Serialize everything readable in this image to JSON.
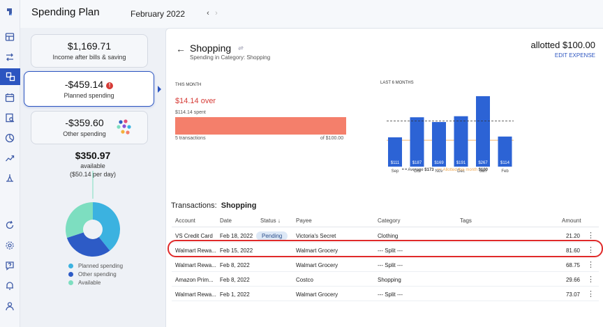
{
  "app": {
    "title": "Spending Plan",
    "month": "February 2022",
    "prev_icon": "chevron-left-icon",
    "next_icon": "chevron-right-icon"
  },
  "colors": {
    "accent": "#2c55c0",
    "over": "#f47f6b",
    "over_text": "#d63b36",
    "bar": "#2c63d5",
    "pie_planned": "#3bb2e0",
    "pie_other": "#2d5bc6",
    "pie_available": "#7ddec0"
  },
  "rail": [
    "logo-icon",
    "dashboard-icon",
    "transactions-icon",
    "spending-plan-icon",
    "calendar-icon",
    "reports-icon",
    "investments-icon",
    "trends-icon",
    "goals-icon",
    "refresh-icon",
    "settings-icon",
    "help-icon",
    "notifications-icon",
    "profile-icon"
  ],
  "left": {
    "income": {
      "amount": "$1,169.71",
      "label": "Income after bills & saving"
    },
    "planned": {
      "amount": "-$459.14",
      "label": "Planned spending",
      "warning": "!"
    },
    "other": {
      "amount": "-$359.60",
      "label": "Other spending"
    },
    "available": {
      "amount": "$350.97",
      "label": "available",
      "per_day": "($50.14 per day)"
    },
    "pie": [
      {
        "name": "Planned spending",
        "value": 459.14,
        "color": "#3bb2e0"
      },
      {
        "name": "Other spending",
        "value": 359.6,
        "color": "#2d5bc6"
      },
      {
        "name": "Available",
        "value": 350.97,
        "color": "#7ddec0"
      }
    ]
  },
  "detail": {
    "title": "Shopping",
    "subtitle": "Spending in Category: Shopping",
    "allotted": "allotted $100.00",
    "edit": "EDIT EXPENSE",
    "this_month": {
      "heading": "THIS MONTH",
      "status": "$14.14 over",
      "spent": "$114.14 spent",
      "transactions": "5 transactions",
      "of": "of $100.00",
      "progress_pct": 100
    },
    "last6": {
      "heading": "LAST 6 MONTHS"
    }
  },
  "chart_data": {
    "type": "bar",
    "categories": [
      "Sep",
      "Oct",
      "Nov",
      "Dec",
      "Jan",
      "Feb"
    ],
    "values": [
      111,
      187,
      169,
      191,
      267,
      114
    ],
    "value_labels": [
      "$111",
      "$187",
      "$169",
      "$191",
      "$267",
      "$114"
    ],
    "average": 173,
    "allotted": 100,
    "legend": {
      "average_label": "Average",
      "average_value": "$173",
      "allotted_label": "Allotted this month",
      "allotted_value": "$100"
    },
    "ylim": [
      0,
      280
    ]
  },
  "transactions": {
    "heading": "Transactions:",
    "category": "Shopping",
    "columns": {
      "account": "Account",
      "date": "Date",
      "status": "Status",
      "payee": "Payee",
      "category": "Category",
      "tags": "Tags",
      "amount": "Amount"
    },
    "sort_icon": "↓",
    "rows": [
      {
        "account": "VS Credit Card",
        "date": "Feb 18, 2022",
        "status": "Pending",
        "payee": "Victoria's Secret",
        "category": "Clothing",
        "tags": "",
        "amount": "21.20"
      },
      {
        "account": "Walmart Rewa...",
        "date": "Feb 15, 2022",
        "status": "",
        "payee": "Walmart Grocery",
        "category": "--- Split ---",
        "tags": "",
        "amount": "81.60"
      },
      {
        "account": "Walmart Rewa...",
        "date": "Feb 8, 2022",
        "status": "",
        "payee": "Walmart Grocery",
        "category": "--- Split ---",
        "tags": "",
        "amount": "68.75"
      },
      {
        "account": "Amazon Prim...",
        "date": "Feb 8, 2022",
        "status": "",
        "payee": "Costco",
        "category": "Shopping",
        "tags": "",
        "amount": "29.66"
      },
      {
        "account": "Walmart Rewa...",
        "date": "Feb 1, 2022",
        "status": "",
        "payee": "Walmart Grocery",
        "category": "--- Split ---",
        "tags": "",
        "amount": "73.07"
      }
    ],
    "row_menu": "⋮"
  }
}
